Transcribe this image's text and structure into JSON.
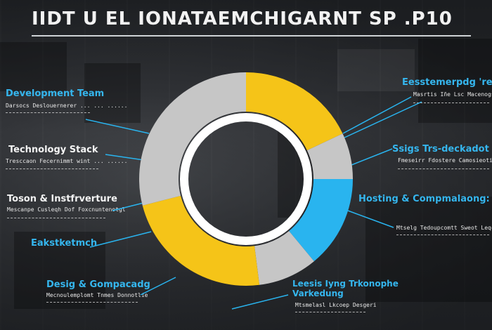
{
  "title": "IIDT U EL IONATAEMCHIGARNT SP .P10",
  "colors": {
    "yellow": "#f5c418",
    "blue": "#29b4ef",
    "gray": "#c6c6c6",
    "label_blue": "#35b6ee",
    "white": "#f4f4f4"
  },
  "labels_left": [
    {
      "title": "Development Team",
      "sub": "Darsocs Deslouernerer ... ... ......"
    },
    {
      "title": "Technology Stack",
      "sub": "Tresccaon Fecernimmt wint ... ......"
    },
    {
      "title": "Toson & Instfrverture",
      "sub": "Mescanpe Cusleqh Dof Foxcnuntenotgl"
    },
    {
      "title": "Eakstketmch",
      "sub": ""
    },
    {
      "title": "Desig & Gompacadg",
      "sub": "Mecnoulemplomt Tnmes Donnotlie"
    }
  ],
  "labels_right": [
    {
      "title": "Eesstemerpdg 're",
      "sub": "Masrtis Iñe Lsc Macenogs"
    },
    {
      "title": "Ssigs Trs-deckadot",
      "sub": "Fmeseirr Fdostere Camosieotiing"
    },
    {
      "title": "Hosting & Compmalaong:",
      "sub": "Mtselg Tedoupcomtt Sweot Leqcrelt"
    },
    {
      "title": "Leesis Iyng Trkonophe Varkedung",
      "sub": "Mtsmelasl Lkcoep Desgeri"
    }
  ],
  "chart_data": {
    "type": "pie",
    "title": "IIDT U EL IONATAEMCHIGARNT SP .P10",
    "donut": true,
    "categories": [
      "Development Team",
      "Technology Stack",
      "Hosting & Compmalaong",
      "Leesis Iyng",
      "Desig & Gompacadg",
      "Toson & Instfrverture"
    ],
    "values": [
      18,
      7,
      14,
      9,
      23,
      29
    ],
    "colors": [
      "#f5c418",
      "#c6c6c6",
      "#29b4ef",
      "#c6c6c6",
      "#f5c418",
      "#c6c6c6"
    ]
  }
}
